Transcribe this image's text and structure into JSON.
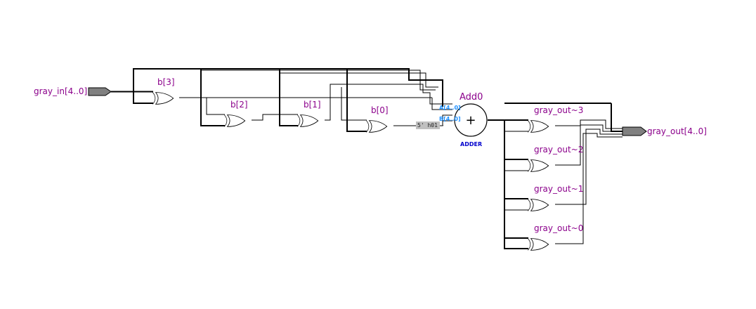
{
  "ports": {
    "input": "gray_in[4..0]",
    "output": "gray_out[4..0]"
  },
  "gates_b": [
    "b[3]",
    "b[2]",
    "b[1]",
    "b[0]"
  ],
  "gates_out": [
    "gray_out~3",
    "gray_out~2",
    "gray_out~1",
    "gray_out~0"
  ],
  "adder": {
    "name": "Add0",
    "type": "ADDER",
    "port_a": "A[4..0]",
    "port_b": "B[4..0]",
    "symbol": "+",
    "constant": "5' h01 -"
  },
  "colors": {
    "label": "#8b008b",
    "port_label": "#1e90ff",
    "adder_label": "#0000cd",
    "pin_fill": "#808080"
  }
}
